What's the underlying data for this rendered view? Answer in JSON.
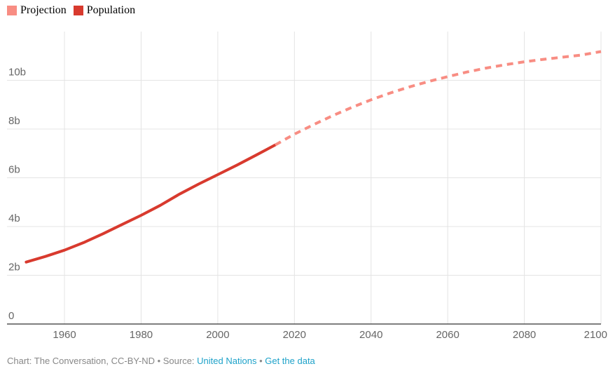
{
  "legend": {
    "items": [
      {
        "label": "Projection",
        "color": "#f88d83"
      },
      {
        "label": "Population",
        "color": "#d83a2e"
      }
    ]
  },
  "chart_data": {
    "type": "line",
    "title": "",
    "xlabel": "",
    "ylabel": "",
    "xlim": [
      1945,
      2100
    ],
    "ylim": [
      0,
      12
    ],
    "grid": true,
    "legend_position": "top-left",
    "x_ticks": [
      1960,
      1980,
      2000,
      2020,
      2040,
      2060,
      2080,
      2100
    ],
    "x_tick_labels": [
      "1960",
      "1980",
      "2000",
      "2020",
      "2040",
      "2060",
      "2080",
      "2100"
    ],
    "y_ticks": [
      0,
      2,
      4,
      6,
      8,
      10
    ],
    "y_tick_labels": [
      "0",
      "2b",
      "4b",
      "6b",
      "8b",
      "10b"
    ],
    "series": [
      {
        "name": "Population",
        "color": "#d83a2e",
        "style": "solid",
        "x": [
          1950,
          1955,
          1960,
          1965,
          1970,
          1975,
          1980,
          1985,
          1990,
          1995,
          2000,
          2005,
          2010,
          2015
        ],
        "values": [
          2.54,
          2.77,
          3.03,
          3.34,
          3.7,
          4.08,
          4.46,
          4.87,
          5.33,
          5.74,
          6.13,
          6.52,
          6.93,
          7.35
        ]
      },
      {
        "name": "Projection",
        "color": "#f88d83",
        "style": "dashed",
        "x": [
          2015,
          2020,
          2025,
          2030,
          2035,
          2040,
          2045,
          2050,
          2055,
          2060,
          2065,
          2070,
          2075,
          2080,
          2085,
          2090,
          2095,
          2100
        ],
        "values": [
          7.35,
          7.79,
          8.18,
          8.55,
          8.89,
          9.2,
          9.48,
          9.73,
          9.95,
          10.15,
          10.34,
          10.5,
          10.64,
          10.76,
          10.86,
          10.95,
          11.04,
          11.18
        ]
      }
    ]
  },
  "footer": {
    "prefix": "Chart: The Conversation, CC-BY-ND • Source: ",
    "source_link": "United Nations",
    "separator": " • ",
    "data_link": "Get the data",
    "link_color": "#1ea2c9"
  }
}
